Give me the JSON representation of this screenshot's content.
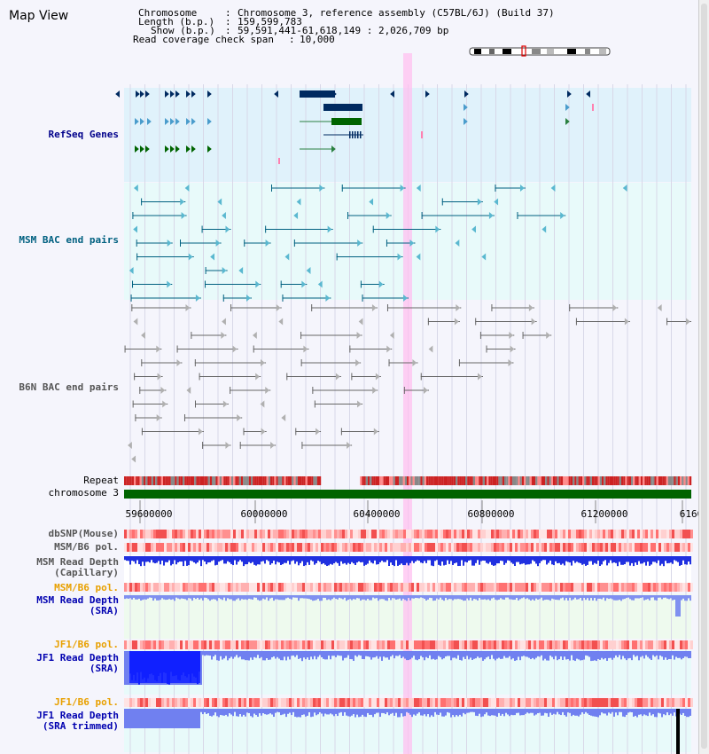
{
  "header": {
    "title": "Map View",
    "chromosome_label": "Chromosome",
    "chromosome_value": "Chromosome 3, reference assembly (C57BL/6J) (Build 37)",
    "length_label": "Length (b.p.)",
    "length_value": "159,599,783",
    "show_label": "Show (b.p.)",
    "show_value": "59,591,441-61,618,149 : 2,026,709 bp",
    "coverage_label": "Read coverage check span",
    "coverage_value": "10,000"
  },
  "tracks": {
    "refseq": "RefSeq Genes",
    "msm_bac": "MSM BAC end pairs",
    "b6n_bac": "B6N BAC end pairs",
    "repeat": "Repeat",
    "chromosome": "chromosome 3",
    "dbsnp": "dbSNP(Mouse)",
    "msm_b6_pol": "MSM/B6 pol.",
    "msm_depth_cap_1": "MSM Read Depth",
    "msm_depth_cap_2": "(Capillary)",
    "msm_b6_pol2": "MSM/B6 pol.",
    "msm_depth_sra_1": "MSM Read Depth",
    "msm_depth_sra_2": "(SRA)",
    "jf1_b6_pol": "JF1/B6 pol.",
    "jf1_depth_sra_1": "JF1 Read Depth",
    "jf1_depth_sra_2": "(SRA)",
    "jf1_b6_pol2": "JF1/B6 pol.",
    "jf1_depth_trim_1": "JF1 Read Depth",
    "jf1_depth_trim_2": "(SRA trimmed)"
  },
  "axis": {
    "ticks": [
      "59600000",
      "60000000",
      "60400000",
      "60800000",
      "61200000",
      "6160"
    ]
  },
  "colors": {
    "refseq_label": "#00008b",
    "msm_label": "#006080",
    "gray_label": "#555555",
    "orange_label": "#e8a000",
    "blue_label": "#0000b0",
    "refseq_bg": "#e0f2fb",
    "msm_bg": "#e8fafa",
    "highlight": "#ffc0f0",
    "chrom_green": "#006400"
  }
}
